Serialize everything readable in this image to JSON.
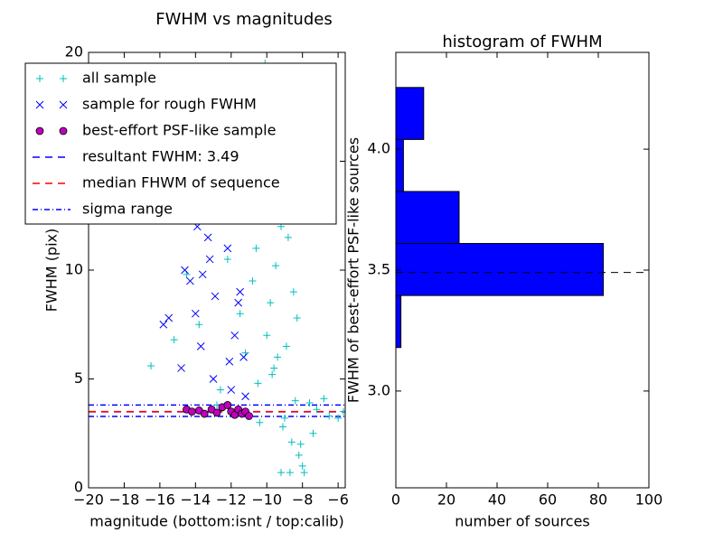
{
  "chart_data": [
    {
      "type": "scatter",
      "title": "FWHM vs magnitudes",
      "xlabel": "magnitude (bottom:isnt / top:calib)",
      "ylabel": "FWHM (pix)",
      "xlim": [
        -20,
        -5.6
      ],
      "ylim": [
        0,
        20
      ],
      "xticks": [
        {
          "value": -20,
          "label": "−20"
        },
        {
          "value": -18,
          "label": "−18"
        },
        {
          "value": -16,
          "label": "−16"
        },
        {
          "value": -14,
          "label": "−14"
        },
        {
          "value": -12,
          "label": "−12"
        },
        {
          "value": -10,
          "label": "−10"
        },
        {
          "value": -8,
          "label": "−8"
        },
        {
          "value": -6,
          "label": "−6"
        }
      ],
      "yticks": [
        0,
        5,
        10,
        15,
        20
      ],
      "legend": "upper left",
      "series": [
        {
          "name": "all sample",
          "color": "#00bfbf",
          "marker": "+",
          "x": [
            -9.8,
            -9.5,
            -9.2,
            -8.9,
            -10.2,
            -10.5,
            -9.0,
            -8.6,
            -8.2,
            -7.9,
            -9.6,
            -10.0,
            -10.8,
            -9.3,
            -8.8,
            -8.4,
            -9.9,
            -10.3,
            -9.1,
            -8.7,
            -7.6,
            -7.2,
            -6.5,
            -6.0,
            -5.7,
            -8.5,
            -9.4,
            -10.6,
            -11.5,
            -12.2,
            -13.0,
            -13.8,
            -14.5,
            -15.2,
            -16.5,
            -12.6,
            -11.8,
            -10.1,
            -9.7,
            -8.3,
            -8.0,
            -7.4,
            -6.8,
            -9.2,
            -9.0,
            -8.9,
            -10.4,
            -11.2,
            -12.8,
            -8.1
          ],
          "values": [
            8.5,
            10.2,
            12.0,
            6.5,
            14.0,
            4.8,
            3.2,
            2.1,
            1.5,
            0.7,
            5.5,
            7.0,
            9.5,
            16.0,
            11.5,
            4.0,
            13.0,
            17.5,
            2.8,
            0.7,
            3.9,
            3.6,
            3.3,
            3.2,
            3.5,
            9.0,
            6.0,
            11.0,
            8.0,
            10.5,
            12.5,
            7.5,
            9.8,
            6.8,
            5.6,
            4.5,
            15.0,
            19.5,
            5.2,
            7.8,
            1.0,
            2.5,
            4.1,
            0.7,
            18.0,
            13.5,
            3.0,
            6.2,
            3.8,
            2.0
          ]
        },
        {
          "name": "sample for rough FWHM",
          "color": "#0000ff",
          "marker": "x",
          "x": [
            -15.8,
            -15.5,
            -14.8,
            -14.3,
            -13.9,
            -13.5,
            -13.2,
            -12.8,
            -12.5,
            -12.2,
            -11.9,
            -11.6,
            -11.3,
            -11.1,
            -14.0,
            -13.0,
            -12.0,
            -11.5,
            -12.6,
            -13.7,
            -14.6,
            -11.2,
            -12.3,
            -13.3,
            -11.8,
            -12.9,
            -14.1,
            -11.4,
            -13.6,
            -12.1
          ],
          "values": [
            7.5,
            7.8,
            5.5,
            9.5,
            12.0,
            14.5,
            10.5,
            16.5,
            13.0,
            11.0,
            15.0,
            8.5,
            6.0,
            12.5,
            8.0,
            5.0,
            4.5,
            9.0,
            17.0,
            6.5,
            10.0,
            4.2,
            14.0,
            11.5,
            7.0,
            8.8,
            13.5,
            16.0,
            9.8,
            5.8
          ]
        },
        {
          "name": "best-effort PSF-like sample",
          "color": "#bf00bf",
          "marker": "o",
          "x": [
            -14.5,
            -14.2,
            -13.8,
            -13.5,
            -13.1,
            -12.8,
            -12.5,
            -12.2,
            -12.0,
            -11.8,
            -11.6,
            -11.4,
            -11.2,
            -11.0
          ],
          "values": [
            3.6,
            3.5,
            3.55,
            3.4,
            3.6,
            3.45,
            3.7,
            3.8,
            3.5,
            3.35,
            3.6,
            3.4,
            3.5,
            3.3
          ]
        }
      ],
      "hlines": [
        {
          "name": "resultant FWHM: 3.49",
          "values": [
            3.49
          ],
          "color": "#0000ff",
          "style": "dashed"
        },
        {
          "name": "median FHWM of sequence",
          "values": [
            3.5
          ],
          "color": "#ff0000",
          "style": "dashed"
        },
        {
          "name": "sigma range",
          "values": [
            3.28,
            3.8
          ],
          "color": "#0000ff",
          "style": "dashdot"
        }
      ]
    },
    {
      "type": "histogram",
      "title": "histogram of FWHM",
      "xlabel": "number of sources",
      "ylabel": "FWHM of best-effort PSF-like sources",
      "orientation": "horizontal",
      "xlim": [
        0,
        100
      ],
      "ylim": [
        2.6,
        4.4
      ],
      "xticks": [
        0,
        20,
        40,
        60,
        80,
        100
      ],
      "yticks": [
        {
          "value": 3,
          "label": "3.0"
        },
        3.5,
        {
          "value": 4,
          "label": "4.0"
        }
      ],
      "bins": [
        3.18,
        3.395,
        3.61,
        3.825,
        4.04,
        4.255
      ],
      "counts": [
        2,
        82,
        25,
        3,
        11
      ],
      "color": "#0000ff",
      "hlines": [
        {
          "values": [
            3.49
          ],
          "color": "#000000",
          "style": "dashed"
        }
      ]
    }
  ]
}
